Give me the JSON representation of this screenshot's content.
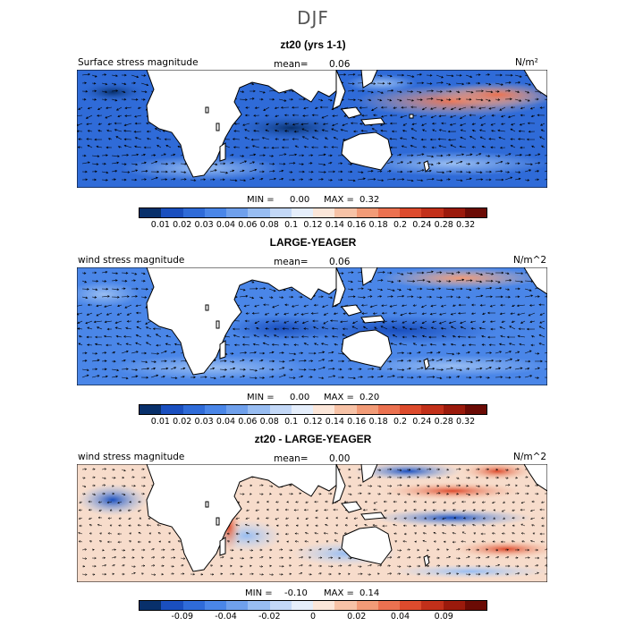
{
  "title": "DJF",
  "colors": [
    "#08306b",
    "#1a4fbf",
    "#2f6bd8",
    "#4a86e8",
    "#6fa0ec",
    "#98bdf2",
    "#c3d8f7",
    "#e5eefb",
    "#fbe6d9",
    "#f7c2a6",
    "#f29b77",
    "#eb7150",
    "#dd4b2d",
    "#c2301a",
    "#9b1a0c",
    "#6b0b05"
  ],
  "panels": [
    {
      "title": "zt20 (yrs 1-1)",
      "left_label": "Surface stress magnitude",
      "mean_label": "mean=",
      "mean_value": "0.06",
      "unit": "N/m²",
      "min_label": "MIN =",
      "min_value": "0.00",
      "max_label": "MAX =",
      "max_value": "0.32",
      "colorbar_ticks": [
        "0.01",
        "0.02",
        "0.03",
        "0.04",
        "0.06",
        "0.08",
        "0.1",
        "0.12",
        "0.14",
        "0.16",
        "0.18",
        "0.2",
        "0.24",
        "0.28",
        "0.32"
      ]
    },
    {
      "title": "LARGE-YEAGER",
      "left_label": "wind stress magnitude",
      "mean_label": "mean=",
      "mean_value": "0.06",
      "unit": "N/m^2",
      "min_label": "MIN =",
      "min_value": "0.00",
      "max_label": "MAX =",
      "max_value": "0.20",
      "colorbar_ticks": [
        "0.01",
        "0.02",
        "0.03",
        "0.04",
        "0.06",
        "0.08",
        "0.1",
        "0.12",
        "0.14",
        "0.16",
        "0.18",
        "0.2",
        "0.24",
        "0.28",
        "0.32"
      ]
    },
    {
      "title": "zt20 - LARGE-YEAGER",
      "left_label": "wind stress magnitude",
      "mean_label": "mean=",
      "mean_value": "0.00",
      "unit": "N/m^2",
      "min_label": "MIN =",
      "min_value": "-0.10",
      "max_label": "MAX =",
      "max_value": "0.14",
      "colorbar_ticks": [
        "-0.09",
        "-0.04",
        "-0.02",
        "0",
        "0.02",
        "0.04",
        "0.09"
      ]
    }
  ]
}
